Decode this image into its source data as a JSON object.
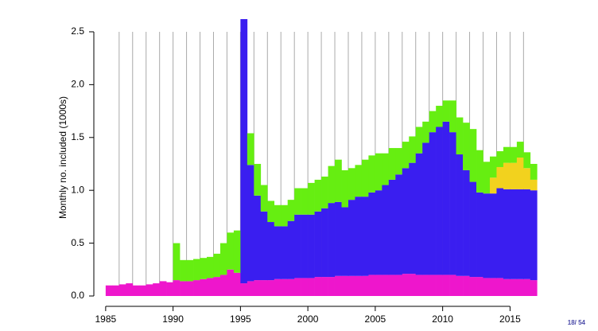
{
  "chart_data": {
    "type": "bar",
    "stacked": true,
    "ylabel": "Monthly no. included (1000s)",
    "x": [
      1985,
      1985.5,
      1986,
      1986.5,
      1987,
      1987.5,
      1988,
      1988.5,
      1989,
      1989.5,
      1990,
      1990.5,
      1991,
      1991.5,
      1992,
      1992.5,
      1993,
      1993.5,
      1994,
      1994.5,
      1995,
      1995.5,
      1996,
      1996.5,
      1997,
      1997.5,
      1998,
      1998.5,
      1999,
      1999.5,
      2000,
      2000.5,
      2001,
      2001.5,
      2002,
      2002.5,
      2003,
      2003.5,
      2004,
      2004.5,
      2005,
      2005.5,
      2006,
      2006.5,
      2007,
      2007.5,
      2008,
      2008.5,
      2009,
      2009.5,
      2010,
      2010.5,
      2011,
      2011.5,
      2012,
      2012.5,
      2013,
      2013.5,
      2014,
      2014.5,
      2015,
      2015.5,
      2016,
      2016.5
    ],
    "series": [
      {
        "color": "#ee16cc",
        "values": [
          0.1,
          0.1,
          0.11,
          0.12,
          0.1,
          0.1,
          0.11,
          0.12,
          0.14,
          0.13,
          0.15,
          0.14,
          0.14,
          0.15,
          0.16,
          0.17,
          0.18,
          0.2,
          0.25,
          0.22,
          0.12,
          0.14,
          0.15,
          0.15,
          0.15,
          0.16,
          0.16,
          0.16,
          0.17,
          0.17,
          0.17,
          0.18,
          0.18,
          0.18,
          0.19,
          0.19,
          0.19,
          0.19,
          0.19,
          0.2,
          0.2,
          0.2,
          0.2,
          0.2,
          0.21,
          0.21,
          0.2,
          0.2,
          0.2,
          0.2,
          0.2,
          0.2,
          0.19,
          0.19,
          0.18,
          0.18,
          0.17,
          0.17,
          0.17,
          0.16,
          0.16,
          0.16,
          0.16,
          0.15
        ]
      },
      {
        "color": "#3a1ef0",
        "values": [
          0,
          0,
          0,
          0,
          0,
          0,
          0,
          0,
          0,
          0,
          0,
          0,
          0,
          0,
          0,
          0,
          0,
          0,
          0,
          0,
          2.5,
          1.1,
          0.8,
          0.65,
          0.55,
          0.5,
          0.5,
          0.55,
          0.6,
          0.6,
          0.6,
          0.62,
          0.65,
          0.7,
          0.7,
          0.65,
          0.72,
          0.75,
          0.75,
          0.78,
          0.8,
          0.85,
          0.9,
          0.95,
          1.0,
          1.05,
          1.15,
          1.25,
          1.35,
          1.4,
          1.45,
          1.35,
          1.15,
          1.0,
          0.9,
          0.8,
          0.8,
          0.8,
          0.85,
          0.85,
          0.85,
          0.85,
          0.85,
          0.85
        ]
      },
      {
        "color": "#f2d21e",
        "values": [
          0,
          0,
          0,
          0,
          0,
          0,
          0,
          0,
          0,
          0,
          0,
          0,
          0,
          0,
          0,
          0,
          0,
          0,
          0,
          0,
          0,
          0,
          0,
          0,
          0,
          0,
          0,
          0,
          0,
          0,
          0,
          0,
          0,
          0,
          0,
          0,
          0,
          0,
          0,
          0,
          0,
          0,
          0,
          0,
          0,
          0,
          0,
          0,
          0,
          0,
          0,
          0,
          0,
          0,
          0,
          0,
          0,
          0.15,
          0.2,
          0.25,
          0.25,
          0.3,
          0.2,
          0.1
        ]
      },
      {
        "color": "#66ee11",
        "values": [
          0,
          0,
          0,
          0,
          0,
          0,
          0,
          0,
          0,
          0,
          0.35,
          0.2,
          0.2,
          0.2,
          0.2,
          0.2,
          0.22,
          0.3,
          0.35,
          0.4,
          0,
          0.3,
          0.3,
          0.25,
          0.2,
          0.2,
          0.2,
          0.2,
          0.25,
          0.25,
          0.3,
          0.3,
          0.3,
          0.35,
          0.4,
          0.35,
          0.3,
          0.3,
          0.35,
          0.35,
          0.35,
          0.3,
          0.3,
          0.25,
          0.25,
          0.25,
          0.25,
          0.2,
          0.2,
          0.2,
          0.2,
          0.3,
          0.35,
          0.45,
          0.5,
          0.4,
          0.3,
          0.2,
          0.15,
          0.15,
          0.15,
          0.15,
          0.15,
          0.15
        ]
      }
    ],
    "xlim": [
      1984.3,
      2017.1
    ],
    "ylim": [
      0,
      2.63
    ],
    "xticks": [
      1985,
      1990,
      1995,
      2000,
      2005,
      2010,
      2015
    ],
    "yticks": [
      {
        "value": 0,
        "label": "0.0"
      },
      0.5,
      {
        "value": 1,
        "label": "1.0"
      },
      1.5,
      {
        "value": 2,
        "label": "2.0"
      },
      2.5
    ],
    "xgrid": [
      1986,
      1987,
      1988,
      1989,
      1990,
      1991,
      1992,
      1993,
      1994,
      1995,
      1996,
      1997,
      1998,
      1999,
      2000,
      2001,
      2002,
      2003,
      2004,
      2005,
      2006,
      2007,
      2008,
      2009,
      2010,
      2011,
      2012,
      2013,
      2014,
      2015,
      2016
    ]
  },
  "page_number": "18/ 54"
}
